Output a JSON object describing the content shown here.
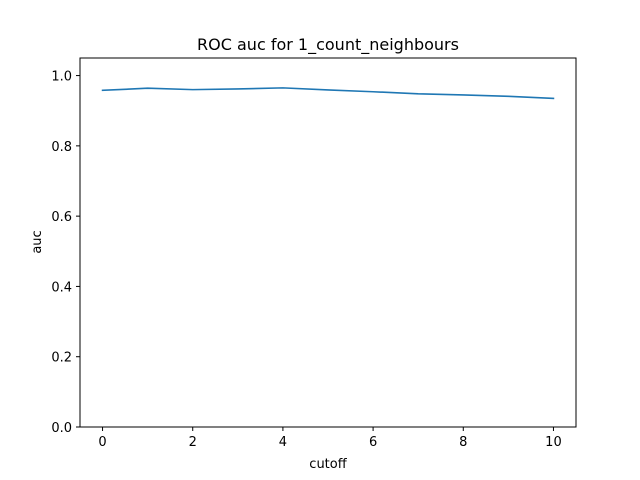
{
  "chart_data": {
    "type": "line",
    "title": "ROC auc for 1_count_neighbours",
    "xlabel": "cutoff",
    "ylabel": "auc",
    "xlim": [
      -0.5,
      10.5
    ],
    "ylim": [
      0,
      1.05
    ],
    "xticks": [
      0,
      2,
      4,
      6,
      8,
      10
    ],
    "xtick_labels": [
      "0",
      "2",
      "4",
      "6",
      "8",
      "10"
    ],
    "yticks": [
      0.0,
      0.2,
      0.4,
      0.6,
      0.8,
      1.0
    ],
    "ytick_labels": [
      "0.0",
      "0.2",
      "0.4",
      "0.6",
      "0.8",
      "1.0"
    ],
    "grid": false,
    "series": [
      {
        "color": "#1f77b4",
        "x": [
          0,
          1,
          2,
          3,
          4,
          5,
          6,
          7,
          8,
          9,
          10
        ],
        "y": [
          0.958,
          0.964,
          0.96,
          0.962,
          0.965,
          0.959,
          0.954,
          0.948,
          0.945,
          0.941,
          0.935
        ]
      }
    ]
  }
}
